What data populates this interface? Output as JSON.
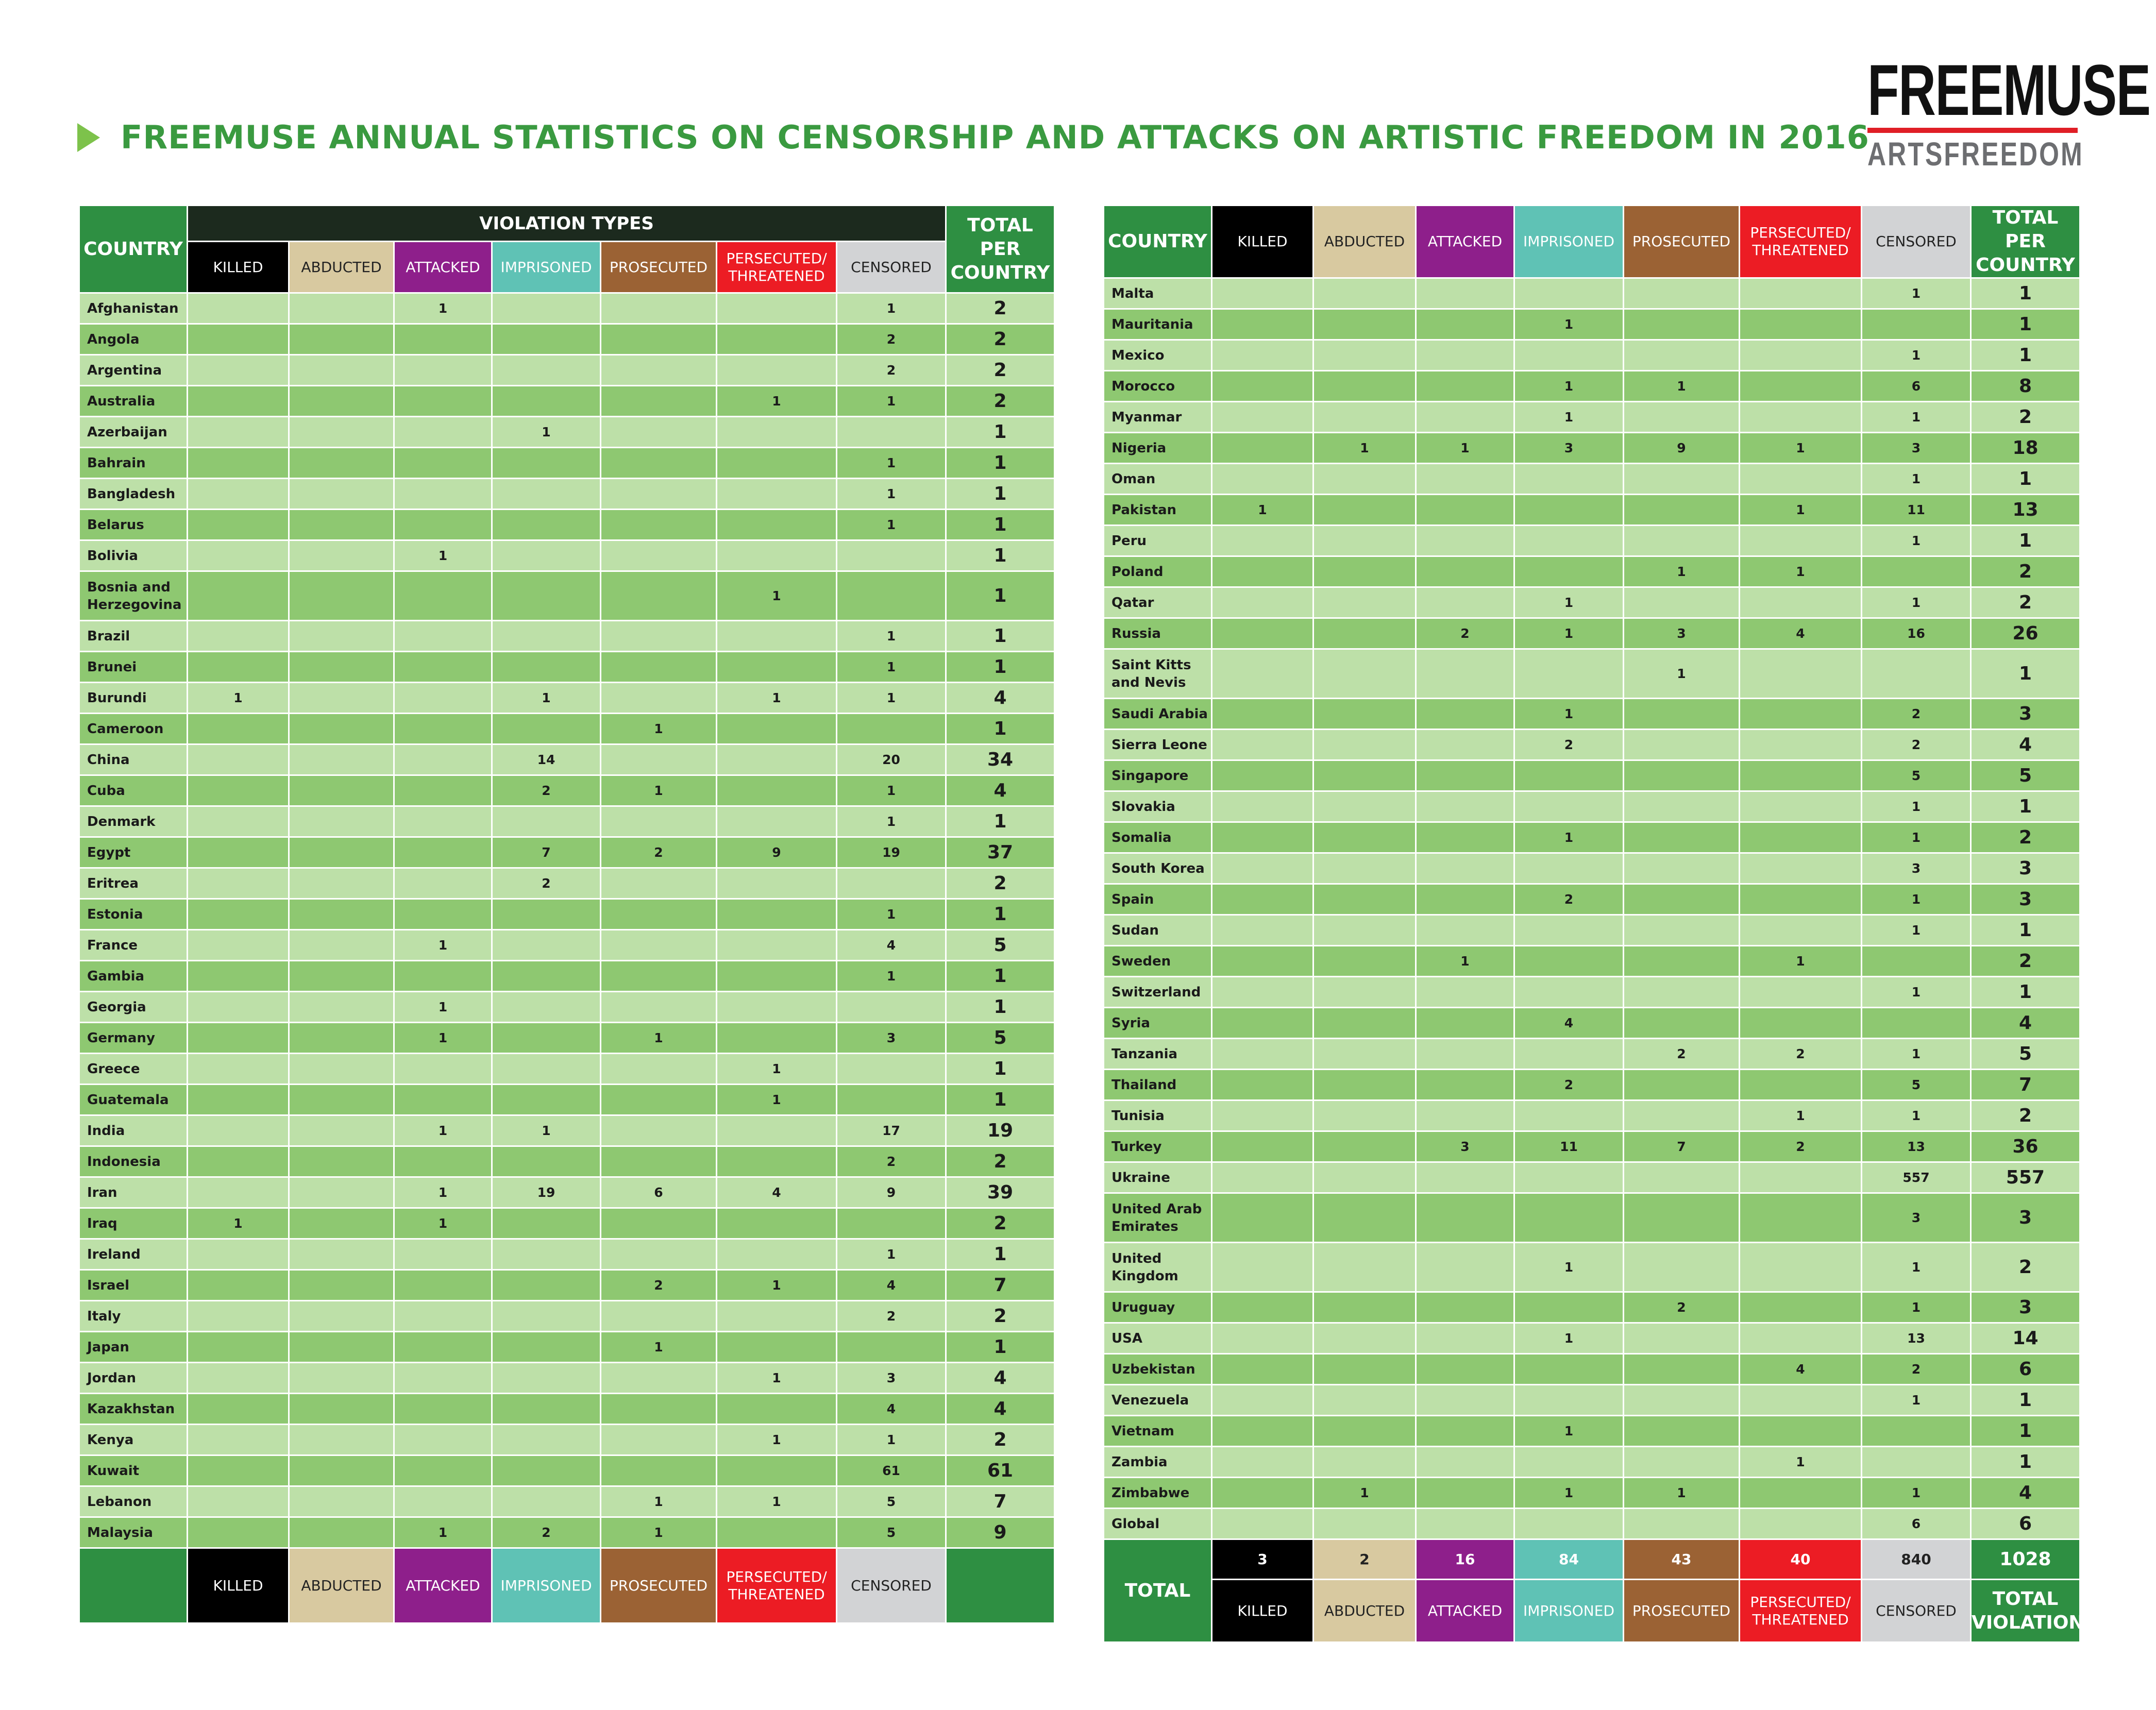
{
  "title": "FREEMUSE ANNUAL STATISTICS ON CENSORSHIP AND ATTACKS ON ARTISTIC FREEDOM IN 2016",
  "logo": {
    "top": "FREEMUSE",
    "bottom": "ARTSFREEDOM"
  },
  "headers": {
    "country": "COUNTRY",
    "violation_types": "VIOLATION TYPES",
    "total_per_country": "TOTAL PER COUNTRY",
    "total": "TOTAL",
    "total_violations": "TOTAL VIOLATIONS",
    "types": [
      "KILLED",
      "ABDUCTED",
      "ATTACKED",
      "IMPRISONED",
      "PROSECUTED",
      "PERSECUTED/ THREATENED",
      "CENSORED"
    ]
  },
  "colors": {
    "killed": "#000000",
    "abducted": "#d8c9a0",
    "attacked": "#8e1f8b",
    "imprisoned": "#5fc2b5",
    "prosecuted": "#9b6234",
    "persecuted": "#ec1c24",
    "censored": "#d2d3d5",
    "green": "#2e8f42"
  },
  "left_rows": [
    {
      "country": "Afghanistan",
      "v": [
        "",
        "",
        "1",
        "",
        "",
        "",
        "1"
      ],
      "total": "2"
    },
    {
      "country": "Angola",
      "v": [
        "",
        "",
        "",
        "",
        "",
        "",
        "2"
      ],
      "total": "2"
    },
    {
      "country": "Argentina",
      "v": [
        "",
        "",
        "",
        "",
        "",
        "",
        "2"
      ],
      "total": "2"
    },
    {
      "country": "Australia",
      "v": [
        "",
        "",
        "",
        "",
        "",
        "1",
        "1"
      ],
      "total": "2"
    },
    {
      "country": "Azerbaijan",
      "v": [
        "",
        "",
        "",
        "1",
        "",
        "",
        ""
      ],
      "total": "1"
    },
    {
      "country": "Bahrain",
      "v": [
        "",
        "",
        "",
        "",
        "",
        "",
        "1"
      ],
      "total": "1"
    },
    {
      "country": "Bangladesh",
      "v": [
        "",
        "",
        "",
        "",
        "",
        "",
        "1"
      ],
      "total": "1"
    },
    {
      "country": "Belarus",
      "v": [
        "",
        "",
        "",
        "",
        "",
        "",
        "1"
      ],
      "total": "1"
    },
    {
      "country": "Bolivia",
      "v": [
        "",
        "",
        "1",
        "",
        "",
        "",
        ""
      ],
      "total": "1"
    },
    {
      "country": "Bosnia and Herzegovina",
      "v": [
        "",
        "",
        "",
        "",
        "",
        "1",
        ""
      ],
      "total": "1",
      "tall": true
    },
    {
      "country": "Brazil",
      "v": [
        "",
        "",
        "",
        "",
        "",
        "",
        "1"
      ],
      "total": "1"
    },
    {
      "country": "Brunei",
      "v": [
        "",
        "",
        "",
        "",
        "",
        "",
        "1"
      ],
      "total": "1"
    },
    {
      "country": "Burundi",
      "v": [
        "1",
        "",
        "",
        "1",
        "",
        "1",
        "1"
      ],
      "total": "4"
    },
    {
      "country": "Cameroon",
      "v": [
        "",
        "",
        "",
        "",
        "1",
        "",
        ""
      ],
      "total": "1"
    },
    {
      "country": "China",
      "v": [
        "",
        "",
        "",
        "14",
        "",
        "",
        "20"
      ],
      "total": "34"
    },
    {
      "country": "Cuba",
      "v": [
        "",
        "",
        "",
        "2",
        "1",
        "",
        "1"
      ],
      "total": "4"
    },
    {
      "country": "Denmark",
      "v": [
        "",
        "",
        "",
        "",
        "",
        "",
        "1"
      ],
      "total": "1"
    },
    {
      "country": "Egypt",
      "v": [
        "",
        "",
        "",
        "7",
        "2",
        "9",
        "19"
      ],
      "total": "37"
    },
    {
      "country": "Eritrea",
      "v": [
        "",
        "",
        "",
        "2",
        "",
        "",
        ""
      ],
      "total": "2"
    },
    {
      "country": "Estonia",
      "v": [
        "",
        "",
        "",
        "",
        "",
        "",
        "1"
      ],
      "total": "1"
    },
    {
      "country": "France",
      "v": [
        "",
        "",
        "1",
        "",
        "",
        "",
        "4"
      ],
      "total": "5"
    },
    {
      "country": "Gambia",
      "v": [
        "",
        "",
        "",
        "",
        "",
        "",
        "1"
      ],
      "total": "1"
    },
    {
      "country": "Georgia",
      "v": [
        "",
        "",
        "1",
        "",
        "",
        "",
        ""
      ],
      "total": "1"
    },
    {
      "country": "Germany",
      "v": [
        "",
        "",
        "1",
        "",
        "1",
        "",
        "3"
      ],
      "total": "5"
    },
    {
      "country": "Greece",
      "v": [
        "",
        "",
        "",
        "",
        "",
        "1",
        ""
      ],
      "total": "1"
    },
    {
      "country": "Guatemala",
      "v": [
        "",
        "",
        "",
        "",
        "",
        "1",
        ""
      ],
      "total": "1"
    },
    {
      "country": "India",
      "v": [
        "",
        "",
        "1",
        "1",
        "",
        "",
        "17"
      ],
      "total": "19"
    },
    {
      "country": "Indonesia",
      "v": [
        "",
        "",
        "",
        "",
        "",
        "",
        "2"
      ],
      "total": "2"
    },
    {
      "country": "Iran",
      "v": [
        "",
        "",
        "1",
        "19",
        "6",
        "4",
        "9"
      ],
      "total": "39"
    },
    {
      "country": "Iraq",
      "v": [
        "1",
        "",
        "1",
        "",
        "",
        "",
        ""
      ],
      "total": "2"
    },
    {
      "country": "Ireland",
      "v": [
        "",
        "",
        "",
        "",
        "",
        "",
        "1"
      ],
      "total": "1"
    },
    {
      "country": "Israel",
      "v": [
        "",
        "",
        "",
        "",
        "2",
        "1",
        "4"
      ],
      "total": "7"
    },
    {
      "country": "Italy",
      "v": [
        "",
        "",
        "",
        "",
        "",
        "",
        "2"
      ],
      "total": "2"
    },
    {
      "country": "Japan",
      "v": [
        "",
        "",
        "",
        "",
        "1",
        "",
        ""
      ],
      "total": "1"
    },
    {
      "country": "Jordan",
      "v": [
        "",
        "",
        "",
        "",
        "",
        "1",
        "3"
      ],
      "total": "4"
    },
    {
      "country": "Kazakhstan",
      "v": [
        "",
        "",
        "",
        "",
        "",
        "",
        "4"
      ],
      "total": "4"
    },
    {
      "country": "Kenya",
      "v": [
        "",
        "",
        "",
        "",
        "",
        "1",
        "1"
      ],
      "total": "2"
    },
    {
      "country": "Kuwait",
      "v": [
        "",
        "",
        "",
        "",
        "",
        "",
        "61"
      ],
      "total": "61"
    },
    {
      "country": "Lebanon",
      "v": [
        "",
        "",
        "",
        "",
        "1",
        "1",
        "5"
      ],
      "total": "7"
    },
    {
      "country": "Malaysia",
      "v": [
        "",
        "",
        "1",
        "2",
        "1",
        "",
        "5"
      ],
      "total": "9"
    }
  ],
  "right_rows": [
    {
      "country": "Malta",
      "v": [
        "",
        "",
        "",
        "",
        "",
        "",
        "1"
      ],
      "total": "1"
    },
    {
      "country": "Mauritania",
      "v": [
        "",
        "",
        "",
        "1",
        "",
        "",
        ""
      ],
      "total": "1"
    },
    {
      "country": "Mexico",
      "v": [
        "",
        "",
        "",
        "",
        "",
        "",
        "1"
      ],
      "total": "1"
    },
    {
      "country": "Morocco",
      "v": [
        "",
        "",
        "",
        "1",
        "1",
        "",
        "6"
      ],
      "total": "8"
    },
    {
      "country": "Myanmar",
      "v": [
        "",
        "",
        "",
        "1",
        "",
        "",
        "1"
      ],
      "total": "2"
    },
    {
      "country": "Nigeria",
      "v": [
        "",
        "1",
        "1",
        "3",
        "9",
        "1",
        "3"
      ],
      "total": "18"
    },
    {
      "country": "Oman",
      "v": [
        "",
        "",
        "",
        "",
        "",
        "",
        "1"
      ],
      "total": "1"
    },
    {
      "country": "Pakistan",
      "v": [
        "1",
        "",
        "",
        "",
        "",
        "1",
        "11"
      ],
      "total": "13"
    },
    {
      "country": "Peru",
      "v": [
        "",
        "",
        "",
        "",
        "",
        "",
        "1"
      ],
      "total": "1"
    },
    {
      "country": "Poland",
      "v": [
        "",
        "",
        "",
        "",
        "1",
        "1",
        ""
      ],
      "total": "2"
    },
    {
      "country": "Qatar",
      "v": [
        "",
        "",
        "",
        "1",
        "",
        "",
        "1"
      ],
      "total": "2"
    },
    {
      "country": "Russia",
      "v": [
        "",
        "",
        "2",
        "1",
        "3",
        "4",
        "16"
      ],
      "total": "26"
    },
    {
      "country": "Saint Kitts and Nevis",
      "v": [
        "",
        "",
        "",
        "",
        "1",
        "",
        ""
      ],
      "total": "1",
      "tall": true
    },
    {
      "country": "Saudi Arabia",
      "v": [
        "",
        "",
        "",
        "1",
        "",
        "",
        "2"
      ],
      "total": "3"
    },
    {
      "country": "Sierra Leone",
      "v": [
        "",
        "",
        "",
        "2",
        "",
        "",
        "2"
      ],
      "total": "4"
    },
    {
      "country": "Singapore",
      "v": [
        "",
        "",
        "",
        "",
        "",
        "",
        "5"
      ],
      "total": "5"
    },
    {
      "country": "Slovakia",
      "v": [
        "",
        "",
        "",
        "",
        "",
        "",
        "1"
      ],
      "total": "1"
    },
    {
      "country": "Somalia",
      "v": [
        "",
        "",
        "",
        "1",
        "",
        "",
        "1"
      ],
      "total": "2"
    },
    {
      "country": "South Korea",
      "v": [
        "",
        "",
        "",
        "",
        "",
        "",
        "3"
      ],
      "total": "3"
    },
    {
      "country": "Spain",
      "v": [
        "",
        "",
        "",
        "2",
        "",
        "",
        "1"
      ],
      "total": "3"
    },
    {
      "country": "Sudan",
      "v": [
        "",
        "",
        "",
        "",
        "",
        "",
        "1"
      ],
      "total": "1"
    },
    {
      "country": "Sweden",
      "v": [
        "",
        "",
        "1",
        "",
        "",
        "1",
        ""
      ],
      "total": "2"
    },
    {
      "country": "Switzerland",
      "v": [
        "",
        "",
        "",
        "",
        "",
        "",
        "1"
      ],
      "total": "1"
    },
    {
      "country": "Syria",
      "v": [
        "",
        "",
        "",
        "4",
        "",
        "",
        ""
      ],
      "total": "4"
    },
    {
      "country": "Tanzania",
      "v": [
        "",
        "",
        "",
        "",
        "2",
        "2",
        "1"
      ],
      "total": "5"
    },
    {
      "country": "Thailand",
      "v": [
        "",
        "",
        "",
        "2",
        "",
        "",
        "5"
      ],
      "total": "7"
    },
    {
      "country": "Tunisia",
      "v": [
        "",
        "",
        "",
        "",
        "",
        "1",
        "1"
      ],
      "total": "2"
    },
    {
      "country": "Turkey",
      "v": [
        "",
        "",
        "3",
        "11",
        "7",
        "2",
        "13"
      ],
      "total": "36"
    },
    {
      "country": "Ukraine",
      "v": [
        "",
        "",
        "",
        "",
        "",
        "",
        "557"
      ],
      "total": "557"
    },
    {
      "country": "United Arab Emirates",
      "v": [
        "",
        "",
        "",
        "",
        "",
        "",
        "3"
      ],
      "total": "3",
      "tall": true
    },
    {
      "country": "United Kingdom",
      "v": [
        "",
        "",
        "",
        "1",
        "",
        "",
        "1"
      ],
      "total": "2",
      "tall": true
    },
    {
      "country": "Uruguay",
      "v": [
        "",
        "",
        "",
        "",
        "2",
        "",
        "1"
      ],
      "total": "3"
    },
    {
      "country": "USA",
      "v": [
        "",
        "",
        "",
        "1",
        "",
        "",
        "13"
      ],
      "total": "14"
    },
    {
      "country": "Uzbekistan",
      "v": [
        "",
        "",
        "",
        "",
        "",
        "4",
        "2"
      ],
      "total": "6"
    },
    {
      "country": "Venezuela",
      "v": [
        "",
        "",
        "",
        "",
        "",
        "",
        "1"
      ],
      "total": "1"
    },
    {
      "country": "Vietnam",
      "v": [
        "",
        "",
        "",
        "1",
        "",
        "",
        ""
      ],
      "total": "1"
    },
    {
      "country": "Zambia",
      "v": [
        "",
        "",
        "",
        "",
        "",
        "1",
        ""
      ],
      "total": "1"
    },
    {
      "country": "Zimbabwe",
      "v": [
        "",
        "1",
        "",
        "1",
        "1",
        "",
        "1"
      ],
      "total": "4"
    },
    {
      "country": "Global",
      "v": [
        "",
        "",
        "",
        "",
        "",
        "",
        "6"
      ],
      "total": "6"
    }
  ],
  "totals": {
    "values": [
      "3",
      "2",
      "16",
      "84",
      "43",
      "40",
      "840"
    ],
    "grand": "1028"
  }
}
